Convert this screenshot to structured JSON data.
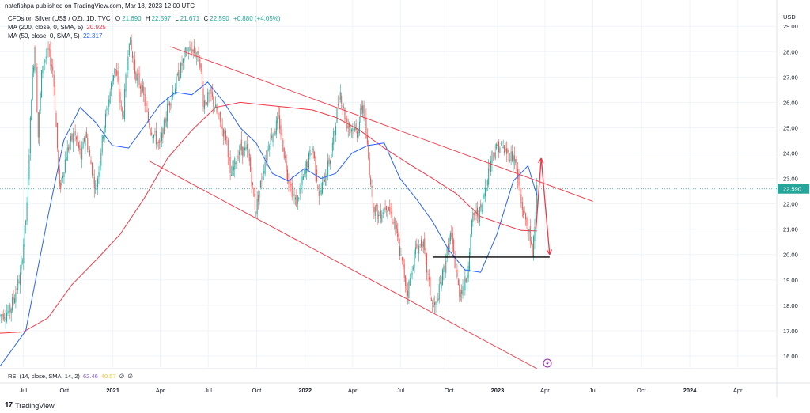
{
  "header": {
    "publisher": "natefishpa published on TradingView.com, Mar 18, 2023 12:00 UTC"
  },
  "symbol": {
    "name": "CFDs on Silver (US$ / OZ), 1D, TVC",
    "open_label": "O",
    "open": "21.690",
    "high_label": "H",
    "high": "22.597",
    "low_label": "L",
    "low": "21.671",
    "close_label": "C",
    "close": "22.590",
    "change": "+0.880 (+4.05%)"
  },
  "indicators": [
    {
      "label": "MA (200, close, 0, SMA, 5)",
      "value": "20.925",
      "color": "#f23645"
    },
    {
      "label": "MA (50, close, 0, SMA, 5)",
      "value": "22.317",
      "color": "#2962ff"
    }
  ],
  "rsi": {
    "label": "RSI (14, close, SMA, 14, 2)",
    "value1": "62.46",
    "value2": "40.57",
    "value3": "∅",
    "value4": "∅"
  },
  "footer": {
    "brand": "TradingView"
  },
  "colors": {
    "up": "#26a69a",
    "down": "#ef5350",
    "ma200": "#f23645",
    "ma50": "#2962ff",
    "trend": "#f23645",
    "support": "#000000",
    "price_tag": "#26a69a",
    "grid": "#f0f3fa"
  },
  "chart_data": {
    "type": "candlestick",
    "currency_label": "USD",
    "price_tag": "22.590",
    "ylim": [
      15.5,
      29.6
    ],
    "y_ticks": [
      "16.00",
      "17.00",
      "18.00",
      "19.00",
      "20.00",
      "21.00",
      "22.00",
      "23.00",
      "24.00",
      "25.00",
      "26.00",
      "27.00",
      "28.00",
      "29.00"
    ],
    "x_ticks": [
      "Jul",
      "Oct",
      "2021",
      "Apr",
      "Jul",
      "Oct",
      "2022",
      "Apr",
      "Jul",
      "Oct",
      "2023",
      "Apr",
      "Jul",
      "Oct",
      "2024",
      "Apr"
    ],
    "bold_x_ticks": [
      "2021",
      "2022",
      "2023",
      "2024"
    ],
    "close_path": [
      [
        "2020-06-01",
        17.6
      ],
      [
        "2020-06-20",
        17.8
      ],
      [
        "2020-07-10",
        19.2
      ],
      [
        "2020-07-22",
        21.8
      ],
      [
        "2020-07-31",
        26.5
      ],
      [
        "2020-08-07",
        28.5
      ],
      [
        "2020-08-12",
        24.5
      ],
      [
        "2020-08-20",
        27.5
      ],
      [
        "2020-09-01",
        28.0
      ],
      [
        "2020-09-10",
        27.2
      ],
      [
        "2020-09-22",
        22.5
      ],
      [
        "2020-10-05",
        24.0
      ],
      [
        "2020-10-20",
        24.8
      ],
      [
        "2020-11-02",
        23.8
      ],
      [
        "2020-11-10",
        24.8
      ],
      [
        "2020-11-30",
        22.5
      ],
      [
        "2020-12-15",
        25.0
      ],
      [
        "2021-01-05",
        27.5
      ],
      [
        "2021-01-20",
        25.3
      ],
      [
        "2021-02-01",
        28.6
      ],
      [
        "2021-02-12",
        27.2
      ],
      [
        "2021-02-26",
        26.5
      ],
      [
        "2021-03-10",
        25.2
      ],
      [
        "2021-03-31",
        24.2
      ],
      [
        "2021-04-15",
        25.8
      ],
      [
        "2021-05-05",
        27.0
      ],
      [
        "2021-05-20",
        28.0
      ],
      [
        "2021-06-01",
        28.1
      ],
      [
        "2021-06-15",
        27.7
      ],
      [
        "2021-06-22",
        26.0
      ],
      [
        "2021-07-06",
        26.3
      ],
      [
        "2021-07-20",
        25.4
      ],
      [
        "2021-08-06",
        24.5
      ],
      [
        "2021-08-12",
        23.0
      ],
      [
        "2021-08-30",
        24.2
      ],
      [
        "2021-09-15",
        24.0
      ],
      [
        "2021-09-29",
        21.7
      ],
      [
        "2021-10-15",
        23.5
      ],
      [
        "2021-10-26",
        24.6
      ],
      [
        "2021-11-12",
        25.3
      ],
      [
        "2021-11-30",
        23.0
      ],
      [
        "2021-12-15",
        22.0
      ],
      [
        "2021-12-31",
        23.2
      ],
      [
        "2022-01-15",
        24.3
      ],
      [
        "2022-01-28",
        22.3
      ],
      [
        "2022-02-20",
        24.0
      ],
      [
        "2022-03-08",
        26.5
      ],
      [
        "2022-03-20",
        25.2
      ],
      [
        "2022-04-10",
        24.8
      ],
      [
        "2022-04-20",
        26.0
      ],
      [
        "2022-05-10",
        22.0
      ],
      [
        "2022-05-20",
        21.5
      ],
      [
        "2022-06-05",
        22.0
      ],
      [
        "2022-06-20",
        21.2
      ],
      [
        "2022-07-14",
        18.5
      ],
      [
        "2022-07-30",
        20.2
      ],
      [
        "2022-08-12",
        20.5
      ],
      [
        "2022-08-30",
        18.0
      ],
      [
        "2022-09-05",
        17.9
      ],
      [
        "2022-09-20",
        19.3
      ],
      [
        "2022-10-04",
        20.8
      ],
      [
        "2022-10-20",
        18.5
      ],
      [
        "2022-11-03",
        19.0
      ],
      [
        "2022-11-15",
        21.5
      ],
      [
        "2022-11-30",
        21.7
      ],
      [
        "2022-12-12",
        23.0
      ],
      [
        "2022-12-22",
        24.0
      ],
      [
        "2023-01-04",
        24.3
      ],
      [
        "2023-01-20",
        24.0
      ],
      [
        "2023-02-03",
        23.8
      ],
      [
        "2023-02-15",
        22.0
      ],
      [
        "2023-02-28",
        21.0
      ],
      [
        "2023-03-08",
        20.0
      ],
      [
        "2023-03-17",
        22.59
      ]
    ],
    "ma200_path": [
      [
        "2020-06-01",
        16.9
      ],
      [
        "2020-07-15",
        16.95
      ],
      [
        "2020-08-31",
        17.5
      ],
      [
        "2020-10-15",
        18.8
      ],
      [
        "2020-12-01",
        19.8
      ],
      [
        "2021-01-15",
        20.8
      ],
      [
        "2021-03-01",
        22.2
      ],
      [
        "2021-04-15",
        23.8
      ],
      [
        "2021-05-31",
        24.9
      ],
      [
        "2021-07-15",
        25.8
      ],
      [
        "2021-08-31",
        26.0
      ],
      [
        "2021-10-15",
        25.9
      ],
      [
        "2021-12-01",
        25.8
      ],
      [
        "2022-01-15",
        25.7
      ],
      [
        "2022-03-01",
        25.4
      ],
      [
        "2022-04-15",
        24.9
      ],
      [
        "2022-05-31",
        24.2
      ],
      [
        "2022-07-15",
        23.6
      ],
      [
        "2022-08-31",
        23.0
      ],
      [
        "2022-10-15",
        22.4
      ],
      [
        "2022-11-30",
        21.5
      ],
      [
        "2023-01-10",
        21.2
      ],
      [
        "2023-02-15",
        20.95
      ],
      [
        "2023-03-17",
        20.93
      ]
    ],
    "ma50_path": [
      [
        "2020-06-01",
        15.6
      ],
      [
        "2020-07-20",
        17.0
      ],
      [
        "2020-08-31",
        21.5
      ],
      [
        "2020-09-30",
        24.5
      ],
      [
        "2020-10-31",
        25.8
      ],
      [
        "2020-11-30",
        25.2
      ],
      [
        "2020-12-31",
        24.3
      ],
      [
        "2021-01-31",
        24.2
      ],
      [
        "2021-02-28",
        25.0
      ],
      [
        "2021-03-31",
        25.9
      ],
      [
        "2021-04-30",
        26.4
      ],
      [
        "2021-05-31",
        26.3
      ],
      [
        "2021-06-30",
        26.8
      ],
      [
        "2021-07-31",
        26.0
      ],
      [
        "2021-08-31",
        25.0
      ],
      [
        "2021-09-30",
        24.4
      ],
      [
        "2021-10-31",
        23.2
      ],
      [
        "2021-11-30",
        22.9
      ],
      [
        "2021-12-31",
        23.4
      ],
      [
        "2022-01-31",
        23.0
      ],
      [
        "2022-02-28",
        23.2
      ],
      [
        "2022-03-31",
        24.0
      ],
      [
        "2022-04-30",
        24.3
      ],
      [
        "2022-05-31",
        24.4
      ],
      [
        "2022-06-30",
        23.0
      ],
      [
        "2022-07-31",
        22.2
      ],
      [
        "2022-08-31",
        21.3
      ],
      [
        "2022-09-30",
        20.2
      ],
      [
        "2022-10-31",
        19.4
      ],
      [
        "2022-11-30",
        19.3
      ],
      [
        "2022-12-31",
        20.8
      ],
      [
        "2023-01-31",
        22.9
      ],
      [
        "2023-02-28",
        23.5
      ],
      [
        "2023-03-17",
        22.32
      ]
    ],
    "upper_trendline": [
      [
        "2021-04-20",
        28.2
      ],
      [
        "2023-07-01",
        22.1
      ]
    ],
    "lower_trendline": [
      [
        "2021-03-10",
        23.7
      ],
      [
        "2023-03-17",
        15.5
      ]
    ],
    "support_line": [
      [
        "2022-09-01",
        19.9
      ],
      [
        "2023-04-10",
        19.9
      ]
    ],
    "projected_path": [
      [
        "2023-03-15",
        21.0
      ],
      [
        "2023-03-25",
        23.8
      ],
      [
        "2023-04-10",
        20.0
      ]
    ]
  }
}
